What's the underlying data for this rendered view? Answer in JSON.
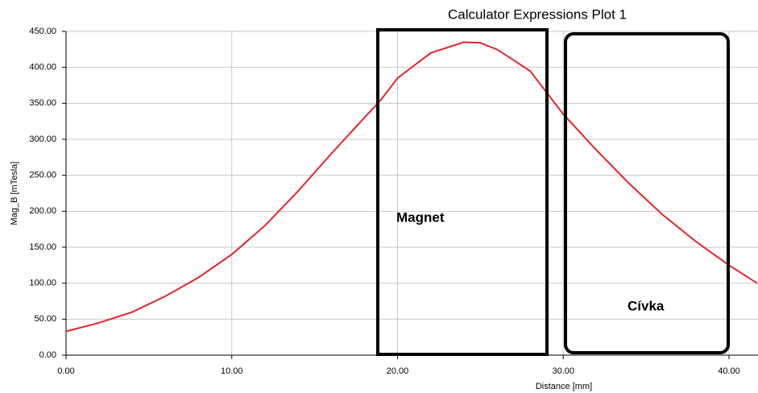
{
  "chart_data": {
    "type": "line",
    "title": "Calculator Expressions Plot 1",
    "x_label": "Distance [mm]",
    "y_label": "Mag_B [mTesla]",
    "annotations": [
      "Magnet",
      "Cívka"
    ],
    "color": "#e3242b",
    "x": [
      0,
      2,
      4,
      6,
      8,
      10,
      12,
      14,
      16,
      18,
      19,
      20,
      22,
      24,
      25,
      26,
      28,
      29,
      30,
      32,
      34,
      36,
      38,
      40,
      41.7
    ],
    "values": [
      33,
      45,
      60,
      82,
      108,
      140,
      180,
      228,
      280,
      330,
      355,
      385,
      420,
      435,
      434,
      425,
      395,
      365,
      335,
      285,
      238,
      195,
      158,
      125,
      100
    ],
    "xlim": [
      0,
      41.75
    ],
    "ylim": [
      0,
      450
    ],
    "xticks": [
      {
        "value": 0,
        "label": "0.00"
      },
      {
        "value": 10,
        "label": "10.00"
      },
      {
        "value": 20,
        "label": "20.00"
      },
      {
        "value": 30,
        "label": "30.00"
      },
      {
        "value": 40,
        "label": "40.00"
      }
    ],
    "yticks": [
      {
        "value": 0,
        "label": "0.00"
      },
      {
        "value": 50,
        "label": "50.00"
      },
      {
        "value": 100,
        "label": "100.00"
      },
      {
        "value": 150,
        "label": "150.00"
      },
      {
        "value": 200,
        "label": "200.00"
      },
      {
        "value": 250,
        "label": "250.00"
      },
      {
        "value": 300,
        "label": "300.00"
      },
      {
        "value": 350,
        "label": "350.00"
      },
      {
        "value": 400,
        "label": "400.00"
      },
      {
        "value": 450,
        "label": "450.00"
      }
    ],
    "grid": true
  }
}
